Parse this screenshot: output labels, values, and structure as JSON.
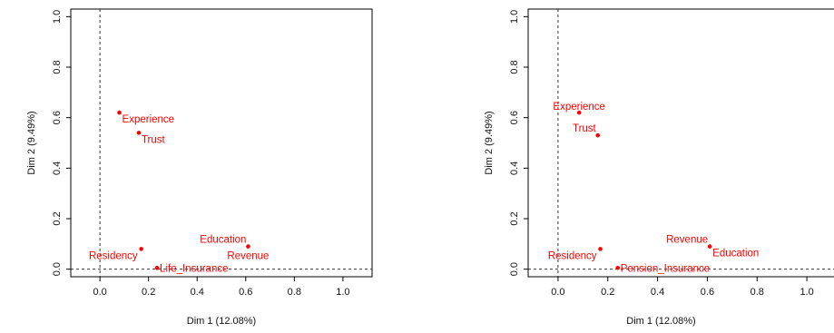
{
  "chart_data": [
    {
      "type": "scatter",
      "xlabel": "Dim 1 (12.08%)",
      "ylabel": "Dim 2 (9.49%)",
      "xlim": [
        -0.12,
        1.12
      ],
      "ylim": [
        -0.03,
        1.03
      ],
      "x_ticks": [
        "0.0",
        "0.2",
        "0.4",
        "0.6",
        "0.8",
        "1.0"
      ],
      "y_ticks": [
        "0.0",
        "0.2",
        "0.4",
        "0.6",
        "0.8",
        "1.0"
      ],
      "reference_lines": {
        "x": 0,
        "y": 0,
        "style": "dashed"
      },
      "point_color": "#ff0000",
      "points": [
        {
          "label": "Experience",
          "x": 0.08,
          "y": 0.62,
          "label_pos": "right-below"
        },
        {
          "label": "Trust",
          "x": 0.16,
          "y": 0.54,
          "label_pos": "right-below"
        },
        {
          "label": "Residency",
          "x": 0.17,
          "y": 0.08,
          "label_pos": "left-below"
        },
        {
          "label": "Education",
          "x": 0.61,
          "y": 0.09,
          "label_pos": "left-above"
        },
        {
          "label": "Revenue",
          "x": 0.61,
          "y": 0.09,
          "label_pos": "below"
        },
        {
          "label": "Life_Insurance",
          "x": 0.235,
          "y": 0.005,
          "label_pos": "right"
        }
      ]
    },
    {
      "type": "scatter",
      "xlabel": "Dim 1 (12.08%)",
      "ylabel": "Dim 2 (9.49%)",
      "xlim": [
        -0.12,
        1.12
      ],
      "ylim": [
        -0.03,
        1.03
      ],
      "x_ticks": [
        "0.0",
        "0.2",
        "0.4",
        "0.6",
        "0.8",
        "1.0"
      ],
      "y_ticks": [
        "0.0",
        "0.2",
        "0.4",
        "0.6",
        "0.8",
        "1.0"
      ],
      "reference_lines": {
        "x": 0,
        "y": 0,
        "style": "dashed"
      },
      "point_color": "#ff0000",
      "points": [
        {
          "label": "Experience",
          "x": 0.085,
          "y": 0.62,
          "label_pos": "above"
        },
        {
          "label": "Trust",
          "x": 0.16,
          "y": 0.53,
          "label_pos": "left-above"
        },
        {
          "label": "Residency",
          "x": 0.17,
          "y": 0.08,
          "label_pos": "left-below"
        },
        {
          "label": "Revenue",
          "x": 0.61,
          "y": 0.09,
          "label_pos": "left-above"
        },
        {
          "label": "Education",
          "x": 0.61,
          "y": 0.09,
          "label_pos": "right-below"
        },
        {
          "label": "Pension_Insurance",
          "x": 0.24,
          "y": 0.005,
          "label_pos": "right"
        }
      ]
    }
  ]
}
